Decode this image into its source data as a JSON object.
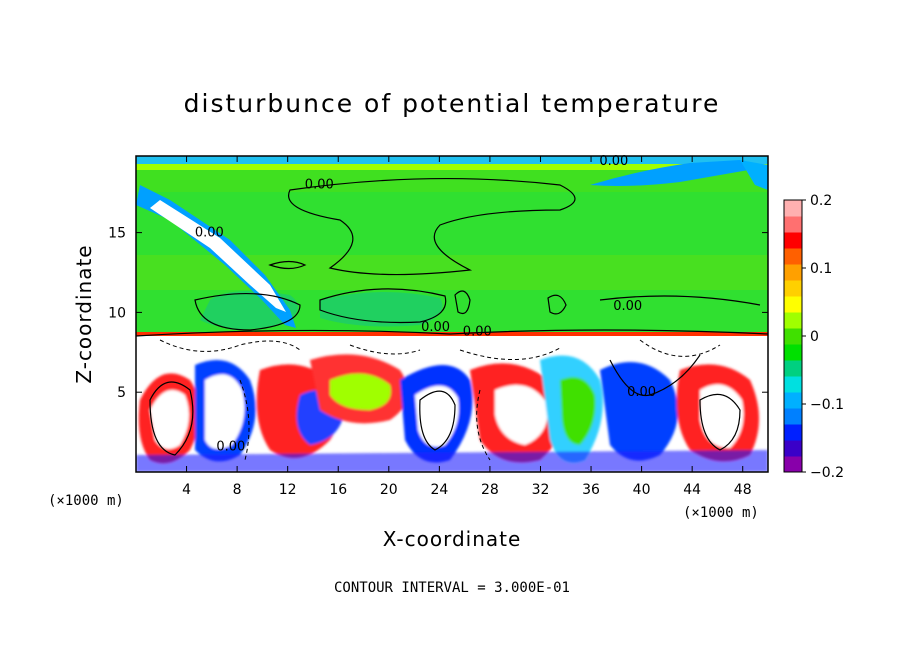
{
  "chart_data": {
    "type": "heatmap",
    "title": "disturbunce of potential temperature",
    "xlabel": "X-coordinate",
    "ylabel": "Z-coordinate",
    "x_unit": "(×1000 m)",
    "z_unit": "(×1000 m)",
    "xlim": [
      0,
      50
    ],
    "ylim": [
      0,
      19.8
    ],
    "x_ticks": [
      4,
      8,
      12,
      16,
      20,
      24,
      28,
      32,
      36,
      40,
      44,
      48
    ],
    "y_ticks": [
      5,
      10,
      15
    ],
    "colorbar": {
      "range": [
        -0.2,
        0.2
      ],
      "ticks": [
        0.2,
        0.1,
        0,
        -0.1,
        -0.2
      ],
      "tick_labels": [
        "0.2",
        "0.1",
        "0",
        "−0.1",
        "−0.2"
      ]
    },
    "contour_interval_text": "CONTOUR INTERVAL = 3.000E-01",
    "contour_labels": [
      {
        "text": "0.00",
        "x": 14.5,
        "z": 18.0
      },
      {
        "text": "0.00",
        "x": 37.8,
        "z": 19.5
      },
      {
        "text": "0.00",
        "x": 5.8,
        "z": 15.0
      },
      {
        "text": "0.00",
        "x": 38.9,
        "z": 10.4
      },
      {
        "text": "0.00",
        "x": 23.7,
        "z": 9.1
      },
      {
        "text": "0.00",
        "x": 27.0,
        "z": 8.8
      },
      {
        "text": "0.00",
        "x": 40.0,
        "z": 5.0
      },
      {
        "text": "0.00",
        "x": 7.5,
        "z": 1.6
      }
    ]
  },
  "colors": {
    "scale": [
      "#8800aa",
      "#3a00c8",
      "#0020ff",
      "#0080ff",
      "#00b0ff",
      "#00e0e0",
      "#00d080",
      "#00e000",
      "#40e000",
      "#a0ff00",
      "#ffff00",
      "#ffd000",
      "#ffa000",
      "#ff6000",
      "#ff0000",
      "#ff7070",
      "#ffb0b0"
    ],
    "background_field": "#30e030"
  }
}
